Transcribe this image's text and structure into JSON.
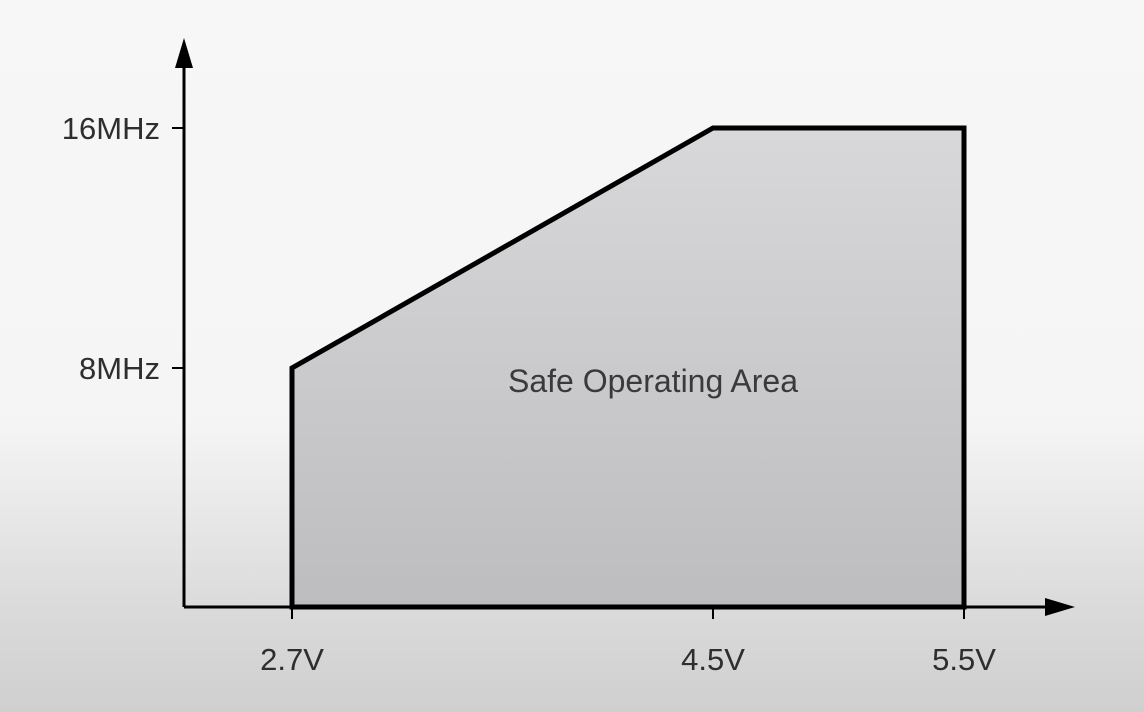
{
  "chart_data": {
    "type": "area",
    "title": "",
    "xlabel": "",
    "ylabel": "",
    "x_unit": "V",
    "y_unit": "MHz",
    "x_ticks": [
      {
        "value": 2.7,
        "label": "2.7V"
      },
      {
        "value": 4.5,
        "label": "4.5V"
      },
      {
        "value": 5.5,
        "label": "5.5V"
      }
    ],
    "y_ticks": [
      {
        "value": 8,
        "label": "8MHz"
      },
      {
        "value": 16,
        "label": "16MHz"
      }
    ],
    "series": [
      {
        "x": [
          2.7,
          2.7,
          4.5,
          5.5,
          5.5
        ],
        "y": [
          0,
          8,
          16,
          16,
          0
        ]
      }
    ],
    "region_label": "Safe Operating Area",
    "colors": {
      "fill": "#d8d8da",
      "outline": "#000000",
      "axis": "#000000"
    },
    "grid": false,
    "legend": "none"
  }
}
